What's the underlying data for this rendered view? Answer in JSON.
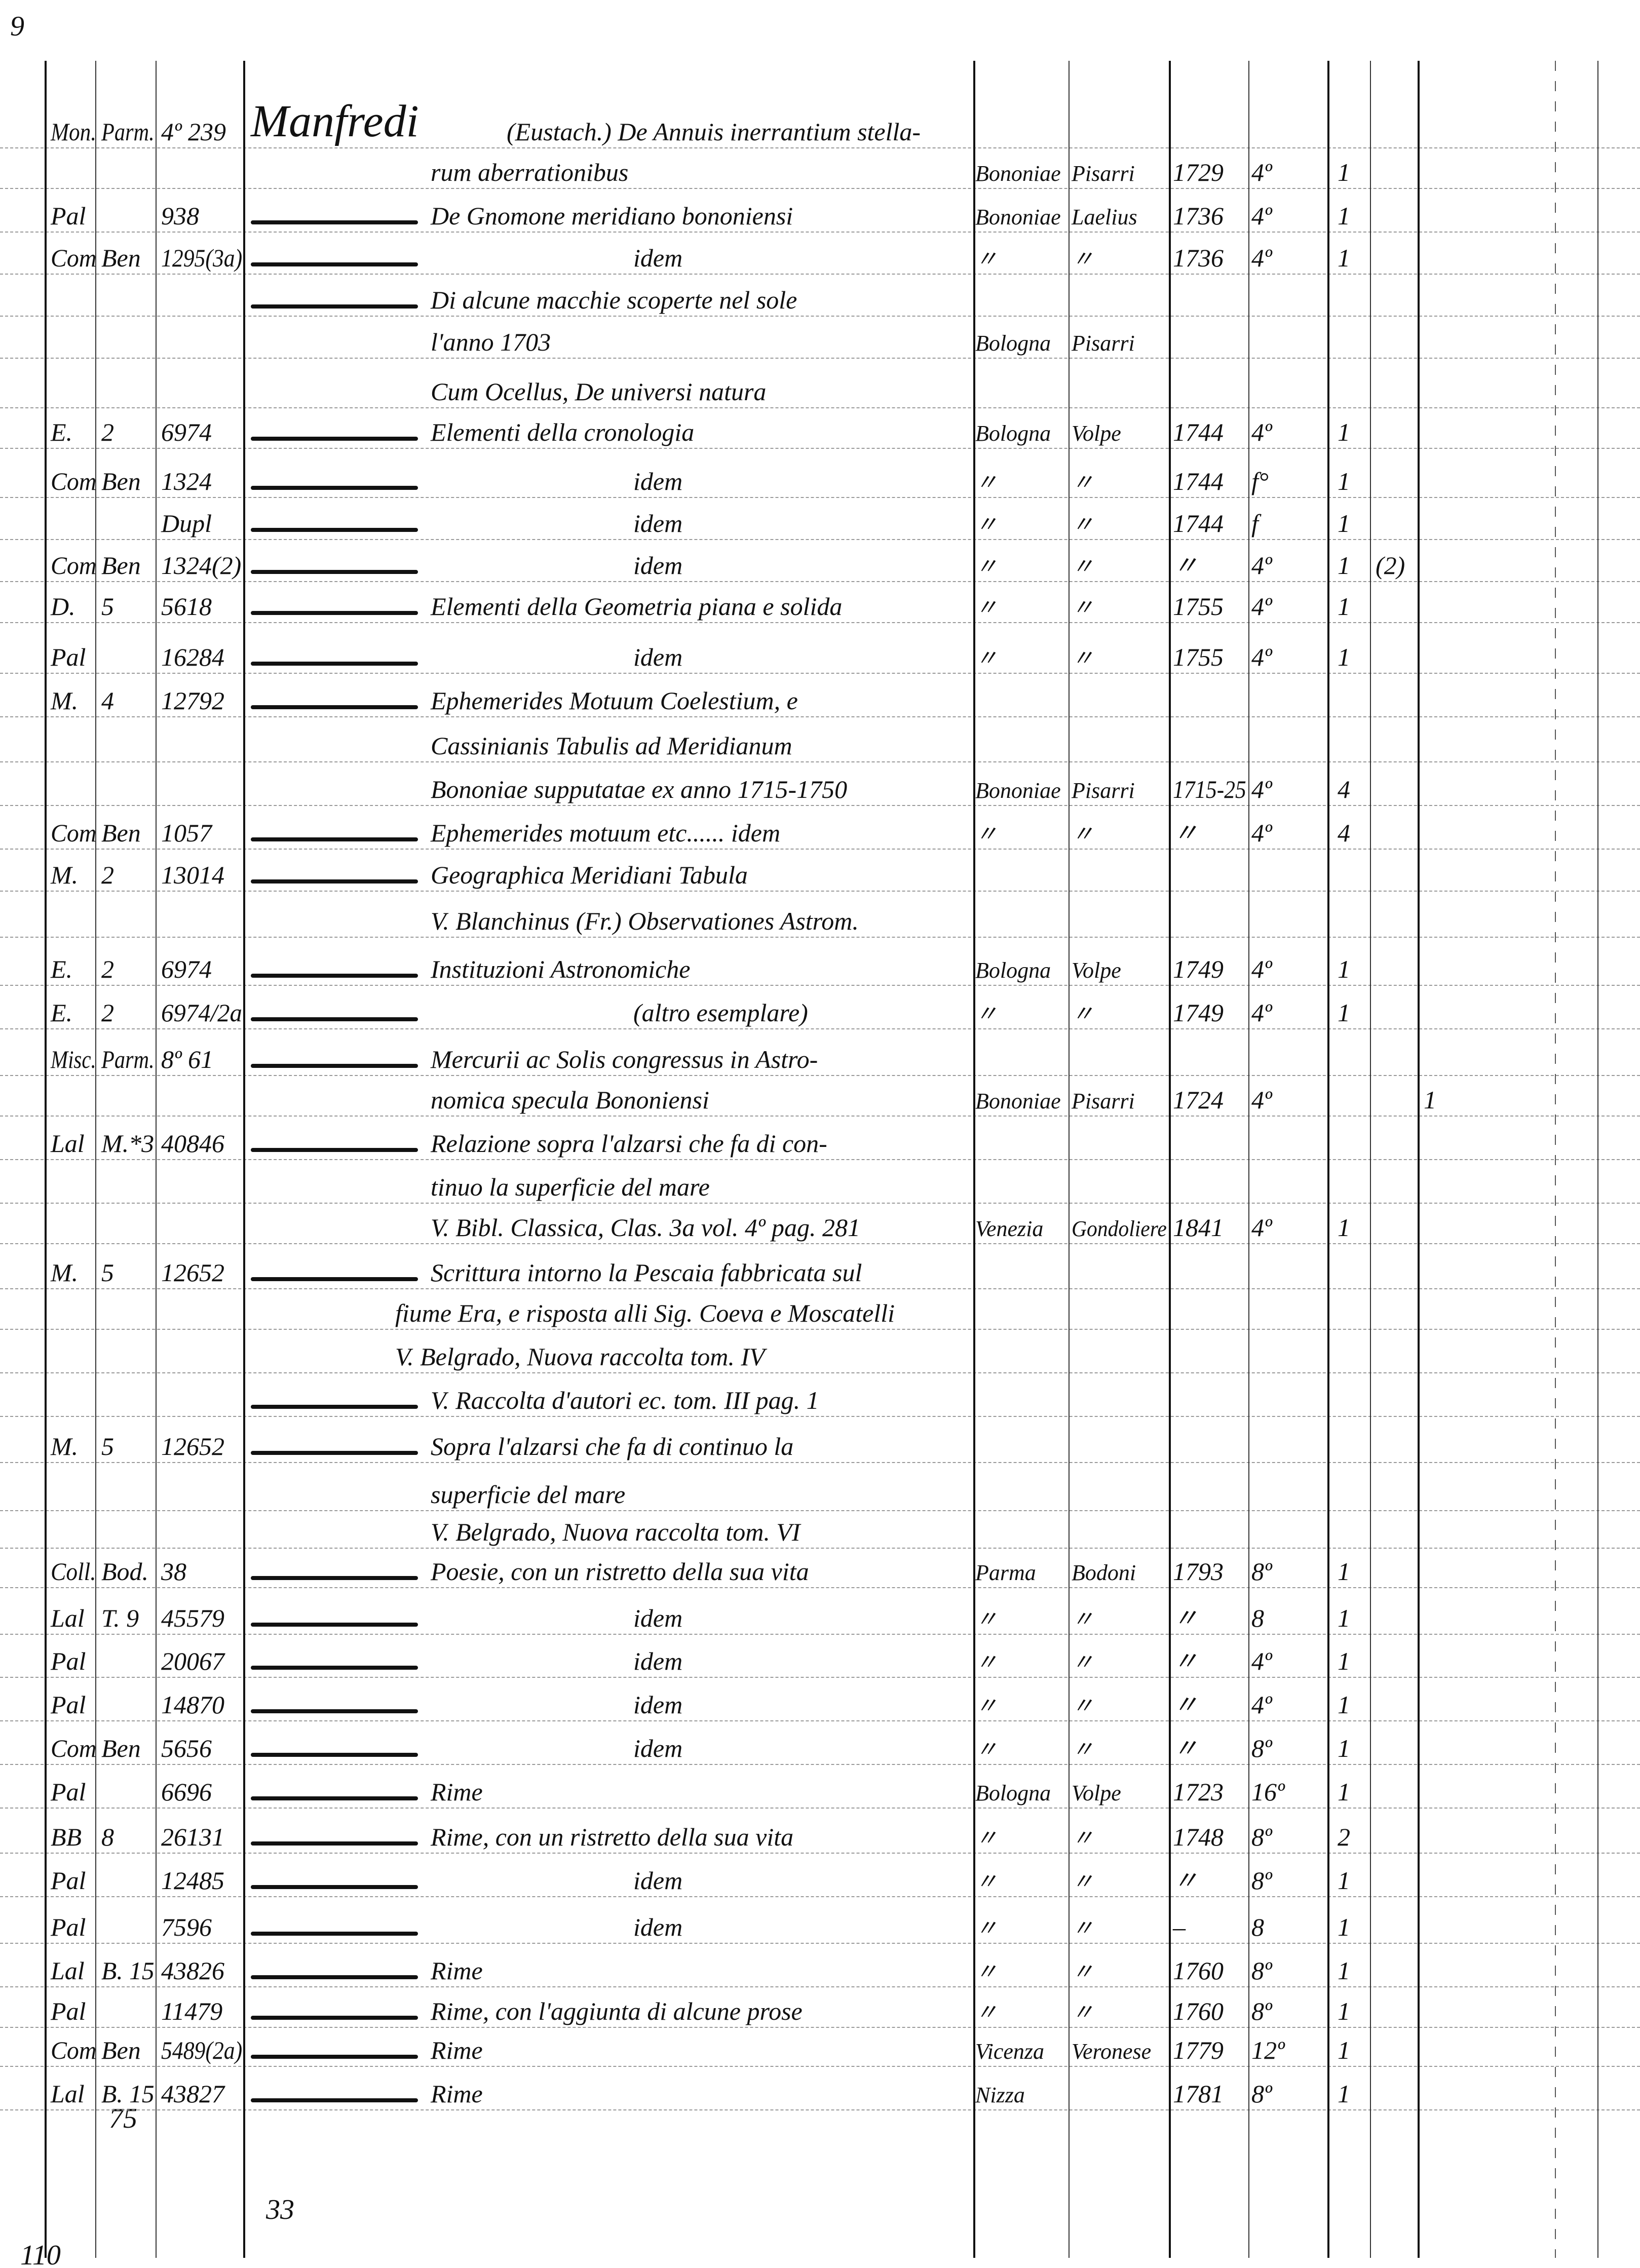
{
  "page_marks": {
    "top_left": "9",
    "bottom_col2": "75",
    "bottom_center": "33",
    "bottom_left": "110"
  },
  "entries": [
    {
      "c1": "Mon.",
      "c2": "Parm.",
      "c3": "4º 239",
      "author": "Manfredi",
      "title": "(Eustach.) De Annuis inerrantium stella-"
    },
    {
      "title": "rum aberrationibus",
      "place": "Bononiae",
      "printer": "Pisarri",
      "year": "1729",
      "format": "4º",
      "vols": "1"
    },
    {
      "c1": "Pal",
      "c3": "938",
      "dash": true,
      "title": "De Gnomone meridiano bononiensi",
      "place": "Bononiae",
      "printer": "Laelius",
      "year": "1736",
      "format": "4º",
      "vols": "1"
    },
    {
      "c1": "Com",
      "c2": "Ben",
      "c3": "1295(3a)",
      "dash": true,
      "title": "idem",
      "center": true,
      "place": "〃",
      "printer": "〃",
      "year": "1736",
      "format": "4º",
      "vols": "1"
    },
    {
      "dash": true,
      "title": "Di alcune macchie scoperte nel sole"
    },
    {
      "title": "l'anno 1703",
      "place": "Bologna",
      "printer": "Pisarri"
    },
    {
      "title": "Cum Ocellus, De universi natura"
    },
    {
      "c1": "E.",
      "c2": "2",
      "c3": "6974",
      "dash": true,
      "title": "Elementi della cronologia",
      "place": "Bologna",
      "printer": "Volpe",
      "year": "1744",
      "format": "4º",
      "vols": "1"
    },
    {
      "c1": "Com",
      "c2": "Ben",
      "c3": "1324",
      "dash": true,
      "title": "idem",
      "center": true,
      "place": "〃",
      "printer": "〃",
      "year": "1744",
      "format": "f°",
      "vols": "1"
    },
    {
      "c3": "Dupl",
      "dash": true,
      "title": "idem",
      "center": true,
      "place": "〃",
      "printer": "〃",
      "year": "1744",
      "format": "f",
      "vols": "1"
    },
    {
      "c1": "Com",
      "c2": "Ben",
      "c3": "1324(2)",
      "dash": true,
      "title": "idem",
      "center": true,
      "place": "〃",
      "printer": "〃",
      "year": "〃",
      "format": "4º",
      "vols": "1",
      "ex1": "(2)"
    },
    {
      "c1": "D.",
      "c2": "5",
      "c3": "5618",
      "dash": true,
      "title": "Elementi della Geometria piana e solida",
      "place": "〃",
      "printer": "〃",
      "year": "1755",
      "format": "4º",
      "vols": "1"
    },
    {
      "c1": "Pal",
      "c3": "16284",
      "dash": true,
      "title": "idem",
      "center": true,
      "place": "〃",
      "printer": "〃",
      "year": "1755",
      "format": "4º",
      "vols": "1"
    },
    {
      "c1": "M.",
      "c2": "4",
      "c3": "12792",
      "dash": true,
      "title": "Ephemerides Motuum Coelestium, e"
    },
    {
      "title": "Cassinianis Tabulis ad Meridianum"
    },
    {
      "title": "Bononiae supputatae ex anno 1715-1750",
      "place": "Bononiae",
      "printer": "Pisarri",
      "year": "1715-25",
      "format": "4º",
      "vols": "4"
    },
    {
      "c1": "Com",
      "c2": "Ben",
      "c3": "1057",
      "dash": true,
      "title": "Ephemerides motuum etc...... idem",
      "place": "〃",
      "printer": "〃",
      "year": "〃",
      "format": "4º",
      "vols": "4"
    },
    {
      "c1": "M.",
      "c2": "2",
      "c3": "13014",
      "dash": true,
      "title": "Geographica Meridiani Tabula"
    },
    {
      "title": "V. Blanchinus (Fr.) Observationes Astrom."
    },
    {
      "c1": "E.",
      "c2": "2",
      "c3": "6974",
      "dash": true,
      "title": "Instituzioni Astronomiche",
      "place": "Bologna",
      "printer": "Volpe",
      "year": "1749",
      "format": "4º",
      "vols": "1"
    },
    {
      "c1": "E.",
      "c2": "2",
      "c3": "6974/2a",
      "dash": true,
      "title": "(altro esemplare)",
      "center": true,
      "place": "〃",
      "printer": "〃",
      "year": "1749",
      "format": "4º",
      "vols": "1"
    },
    {
      "c1": "Misc.",
      "c2": "Parm.",
      "c3": "8º 61",
      "dash": true,
      "title": "Mercurii ac Solis congressus in Astro-"
    },
    {
      "title": "nomica specula Bononiensi",
      "place": "Bononiae",
      "printer": "Pisarri",
      "year": "1724",
      "format": "4º",
      "ex2": "1"
    },
    {
      "c1": "Lal",
      "c2": "M.*3",
      "c3": "40846",
      "dash": true,
      "title": "Relazione sopra l'alzarsi che fa di con-"
    },
    {
      "title": "tinuo la superficie del mare"
    },
    {
      "title": "V. Bibl. Classica, Clas. 3a vol. 4º pag. 281",
      "place": "Venezia",
      "printer": "Gondoliere",
      "year": "1841",
      "format": "4º",
      "vols": "1"
    },
    {
      "c1": "M.",
      "c2": "5",
      "c3": "12652",
      "dash": true,
      "title": "Scrittura intorno la Pescaia fabbricata sul"
    },
    {
      "title": "fiume Era, e risposta alli Sig. Coeva e Moscatelli",
      "wide": true
    },
    {
      "title": "V. Belgrado, Nuova raccolta tom. IV",
      "wide": true
    },
    {
      "dash": true,
      "title": "V. Raccolta d'autori ec. tom. III pag. 1"
    },
    {
      "c1": "M.",
      "c2": "5",
      "c3": "12652",
      "dash": true,
      "title": "Sopra l'alzarsi che fa di continuo la"
    },
    {
      "title": "superficie del mare"
    },
    {
      "title": "V. Belgrado, Nuova raccolta tom. VI"
    },
    {
      "c1": "Coll.",
      "c2": "Bod.",
      "c3": "38",
      "dash": true,
      "title": "Poesie, con un ristretto della sua vita",
      "place": "Parma",
      "printer": "Bodoni",
      "year": "1793",
      "format": "8º",
      "vols": "1"
    },
    {
      "c1": "Lal",
      "c2": "T. 9",
      "c3": "45579",
      "dash": true,
      "title": "idem",
      "center": true,
      "place": "〃",
      "printer": "〃",
      "year": "〃",
      "format": "8",
      "vols": "1"
    },
    {
      "c1": "Pal",
      "c3": "20067",
      "dash": true,
      "title": "idem",
      "center": true,
      "place": "〃",
      "printer": "〃",
      "year": "〃",
      "format": "4º",
      "vols": "1"
    },
    {
      "c1": "Pal",
      "c3": "14870",
      "dash": true,
      "title": "idem",
      "center": true,
      "place": "〃",
      "printer": "〃",
      "year": "〃",
      "format": "4º",
      "vols": "1"
    },
    {
      "c1": "Com",
      "c2": "Ben",
      "c3": "5656",
      "dash": true,
      "title": "idem",
      "center": true,
      "place": "〃",
      "printer": "〃",
      "year": "〃",
      "format": "8º",
      "vols": "1"
    },
    {
      "c1": "Pal",
      "c3": "6696",
      "dash": true,
      "title": "Rime",
      "place": "Bologna",
      "printer": "Volpe",
      "year": "1723",
      "format": "16º",
      "vols": "1"
    },
    {
      "c1": "BB",
      "c2": "8",
      "c3": "26131",
      "dash": true,
      "title": "Rime, con un ristretto della sua vita",
      "place": "〃",
      "printer": "〃",
      "year": "1748",
      "format": "8º",
      "vols": "2"
    },
    {
      "c1": "Pal",
      "c3": "12485",
      "dash": true,
      "title": "idem",
      "center": true,
      "place": "〃",
      "printer": "〃",
      "year": "〃",
      "format": "8º",
      "vols": "1"
    },
    {
      "c1": "Pal",
      "c3": "7596",
      "dash": true,
      "title": "idem",
      "center": true,
      "place": "〃",
      "printer": "〃",
      "year": "–",
      "format": "8",
      "vols": "1"
    },
    {
      "c1": "Lal",
      "c2": "B. 15",
      "c3": "43826",
      "dash": true,
      "title": "Rime",
      "place": "〃",
      "printer": "〃",
      "year": "1760",
      "format": "8º",
      "vols": "1"
    },
    {
      "c1": "Pal",
      "c3": "11479",
      "dash": true,
      "title": "Rime, con l'aggiunta di alcune prose",
      "place": "〃",
      "printer": "〃",
      "year": "1760",
      "format": "8º",
      "vols": "1"
    },
    {
      "c1": "Com",
      "c2": "Ben",
      "c3": "5489(2a)",
      "dash": true,
      "title": "Rime",
      "place": "Vicenza",
      "printer": "Veronese",
      "year": "1779",
      "format": "12º",
      "vols": "1"
    },
    {
      "c1": "Lal",
      "c2": "B. 15",
      "c3": "43827",
      "dash": true,
      "title": "Rime",
      "place": "Nizza",
      "year": "1781",
      "format": "8º",
      "vols": "1"
    }
  ]
}
